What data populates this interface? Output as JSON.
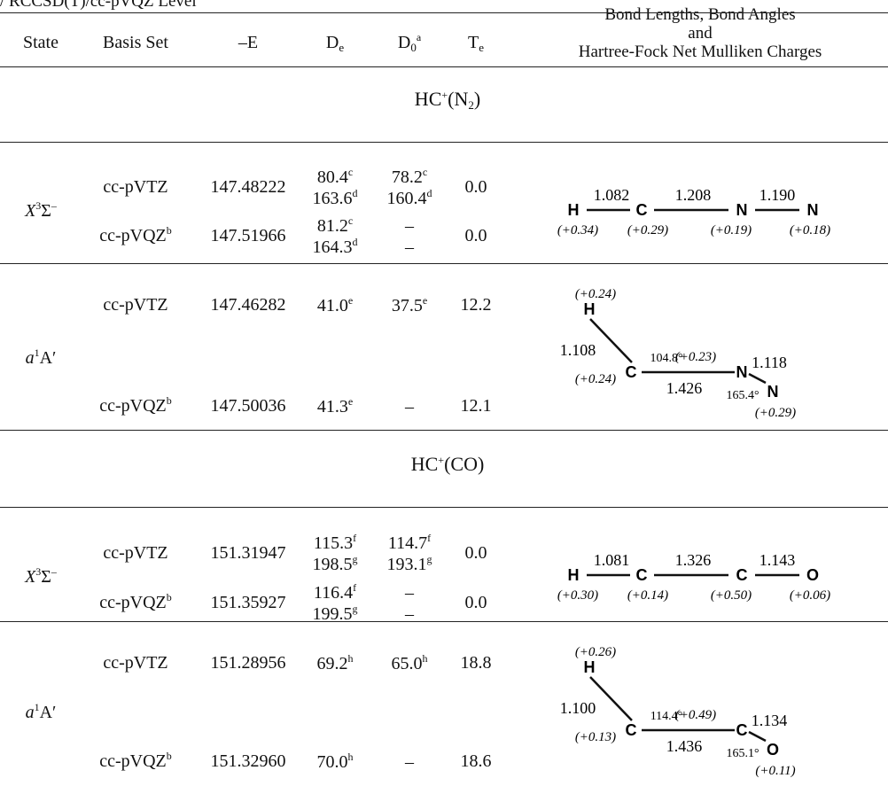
{
  "caption": "/ RCCSD(T)/cc-pVQZ Level",
  "headers": {
    "state": "State",
    "basis": "Basis Set",
    "e": "–E",
    "de_base": "D",
    "de_sub": "e",
    "d0_base": "D",
    "d0_sub": "0",
    "d0_sup": "a",
    "te_base": "T",
    "te_sub": "e",
    "geom_line1": "Bond Lengths, Bond Angles",
    "geom_line2": "and",
    "geom_line3": "Hartree-Fock Net Mulliken Charges"
  },
  "sections": [
    {
      "title_base": "HC",
      "title_sup": "+",
      "title_open": "(N",
      "title_sub": "2",
      "title_close": ")",
      "states": [
        {
          "label": {
            "letter": "X",
            "sup": "3",
            "symbol": "Σ",
            "symsup": "–"
          },
          "rows": [
            {
              "basis": "cc-pVTZ",
              "basis_sup": "",
              "e": "147.48222",
              "de": [
                {
                  "v": "80.4",
                  "s": "c"
                },
                {
                  "v": "163.6",
                  "s": "d"
                }
              ],
              "d0": [
                {
                  "v": "78.2",
                  "s": "c"
                },
                {
                  "v": "160.4",
                  "s": "d"
                }
              ],
              "te": "0.0"
            },
            {
              "basis": "cc-pVQZ",
              "basis_sup": "b",
              "e": "147.51966",
              "de": [
                {
                  "v": "81.2",
                  "s": "c"
                },
                {
                  "v": "164.3",
                  "s": "d"
                }
              ],
              "d0": [
                {
                  "v": "–",
                  "s": ""
                },
                {
                  "v": "–",
                  "s": ""
                }
              ],
              "te": "0.0"
            }
          ],
          "geometry": {
            "kind": "linear",
            "atoms": [
              "H",
              "C",
              "N",
              "N"
            ],
            "bonds": [
              "1.082",
              "1.208",
              "1.190"
            ],
            "charges": [
              "(+0.34)",
              "(+0.29)",
              "(+0.19)",
              "(+0.18)"
            ]
          }
        },
        {
          "label": {
            "letter": "a",
            "sup": "1",
            "symbol": "A′",
            "symsup": ""
          },
          "rows": [
            {
              "basis": "cc-pVTZ",
              "basis_sup": "",
              "e": "147.46282",
              "de": [
                {
                  "v": "41.0",
                  "s": "e"
                }
              ],
              "d0": [
                {
                  "v": "37.5",
                  "s": "e"
                }
              ],
              "te": "12.2"
            },
            {
              "basis": "cc-pVQZ",
              "basis_sup": "b",
              "e": "147.50036",
              "de": [
                {
                  "v": "41.3",
                  "s": "e"
                }
              ],
              "d0": [
                {
                  "v": "–",
                  "s": ""
                }
              ],
              "te": "12.1"
            }
          ],
          "geometry": {
            "kind": "bent",
            "atoms": [
              "H",
              "C",
              "N",
              "N"
            ],
            "top_charge": "(+0.24)",
            "ch_bond": "1.108",
            "angle1": "104.8°",
            "mid_charge": "(+0.23)",
            "c_charge": "(+0.24)",
            "cn_bond": "1.426",
            "angle2": "165.4°",
            "nn_bond": "1.118",
            "end_charge": "(+0.29)"
          }
        }
      ]
    },
    {
      "title_base": "HC",
      "title_sup": "+",
      "title_open": "(CO)",
      "title_sub": "",
      "title_close": "",
      "states": [
        {
          "label": {
            "letter": "X",
            "sup": "3",
            "symbol": "Σ",
            "symsup": "–"
          },
          "rows": [
            {
              "basis": "cc-pVTZ",
              "basis_sup": "",
              "e": "151.31947",
              "de": [
                {
                  "v": "115.3",
                  "s": "f"
                },
                {
                  "v": "198.5",
                  "s": "g"
                }
              ],
              "d0": [
                {
                  "v": "114.7",
                  "s": "f"
                },
                {
                  "v": "193.1",
                  "s": "g"
                }
              ],
              "te": "0.0"
            },
            {
              "basis": "cc-pVQZ",
              "basis_sup": "b",
              "e": "151.35927",
              "de": [
                {
                  "v": "116.4",
                  "s": "f"
                },
                {
                  "v": "199.5",
                  "s": "g"
                }
              ],
              "d0": [
                {
                  "v": "–",
                  "s": ""
                },
                {
                  "v": "–",
                  "s": ""
                }
              ],
              "te": "0.0"
            }
          ],
          "geometry": {
            "kind": "linear",
            "atoms": [
              "H",
              "C",
              "C",
              "O"
            ],
            "bonds": [
              "1.081",
              "1.326",
              "1.143"
            ],
            "charges": [
              "(+0.30)",
              "(+0.14)",
              "(+0.50)",
              "(+0.06)"
            ]
          }
        },
        {
          "label": {
            "letter": "a",
            "sup": "1",
            "symbol": "A′",
            "symsup": ""
          },
          "rows": [
            {
              "basis": "cc-pVTZ",
              "basis_sup": "",
              "e": "151.28956",
              "de": [
                {
                  "v": "69.2",
                  "s": "h"
                }
              ],
              "d0": [
                {
                  "v": "65.0",
                  "s": "h"
                }
              ],
              "te": "18.8"
            },
            {
              "basis": "cc-pVQZ",
              "basis_sup": "b",
              "e": "151.32960",
              "de": [
                {
                  "v": "70.0",
                  "s": "h"
                }
              ],
              "d0": [
                {
                  "v": "–",
                  "s": ""
                }
              ],
              "te": "18.6"
            }
          ],
          "geometry": {
            "kind": "bent",
            "atoms": [
              "H",
              "C",
              "C",
              "O"
            ],
            "top_charge": "(+0.26)",
            "ch_bond": "1.100",
            "angle1": "114.4°",
            "mid_charge": "(+0.49)",
            "c_charge": "(+0.13)",
            "cn_bond": "1.436",
            "angle2": "165.1°",
            "nn_bond": "1.134",
            "end_charge": "(+0.11)"
          }
        }
      ]
    }
  ]
}
